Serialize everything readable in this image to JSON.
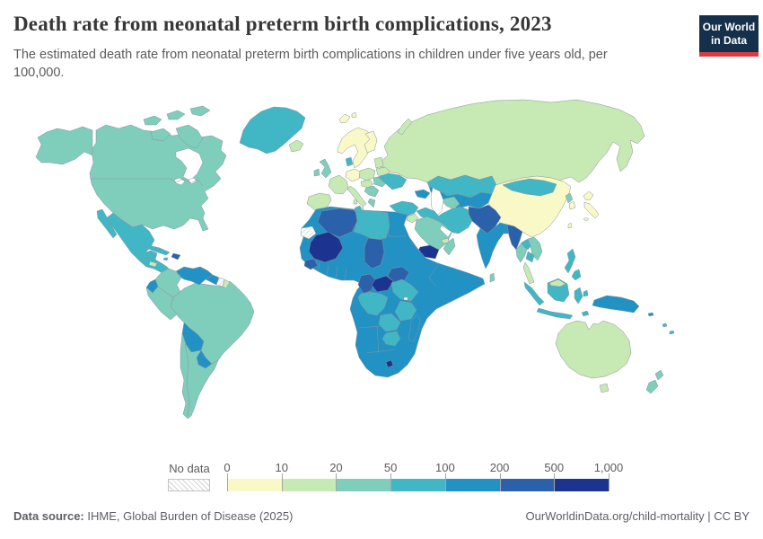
{
  "header": {
    "title": "Death rate from neonatal preterm birth complications, 2023",
    "subtitle": "The estimated death rate from neonatal preterm birth complications in children under five years old, per 100,000.",
    "logo": {
      "line1": "Our World",
      "line2": "in Data",
      "bg_color": "#15304a",
      "accent_color": "#d93b3e"
    }
  },
  "legend": {
    "no_data_label": "No data",
    "tick_labels": [
      "0",
      "10",
      "20",
      "50",
      "100",
      "200",
      "500",
      "1,000"
    ],
    "bin_labels": [
      "0-10",
      "10-20",
      "20-50",
      "50-100",
      "100-200",
      "200-500",
      "500-1000"
    ],
    "bin_colors": [
      "#f8f9c6",
      "#c7e9b4",
      "#7fcdbb",
      "#41b6c4",
      "#2292c4",
      "#2a61aa",
      "#1c348f"
    ]
  },
  "footer": {
    "source_label": "Data source:",
    "source_text": " IHME, Global Burden of Disease (2025)",
    "credit_text": "OurWorldinData.org/child-mortality | CC BY"
  },
  "chart_data": {
    "type": "choropleth",
    "title": "Death rate from neonatal preterm birth complications, 2023",
    "year": 2023,
    "unit": "estimated deaths per 100,000 in children under five",
    "color_scheme": "YlGnBu",
    "bin_edges": [
      0,
      10,
      20,
      50,
      100,
      200,
      500,
      1000
    ],
    "no_data_style": "diagonal-hatch",
    "region_bins": {
      "alaska": "20-50",
      "canada-and-united-states": "20-50",
      "canadian-arctic": "20-50",
      "greenland": "50-100",
      "iceland": "10-20",
      "mexico": "50-100",
      "central-america": "50-100",
      "honduras": "10-20",
      "cuba": "50-100",
      "jamaica": "50-100",
      "hispaniola": "200-500",
      "colombia": "20-50",
      "venezuela": "100-200",
      "guyana": "100-200",
      "suriname": "no-data",
      "french-guiana": "10-20",
      "ecuador": "100-200",
      "peru": "20-50",
      "brazil": "20-50",
      "bolivia": "100-200",
      "paraguay": "100-200",
      "argentina-chile": "20-50",
      "united-kingdom": "20-50",
      "ireland": "20-50",
      "norway-sweden": "0-10",
      "finland": "0-10",
      "svalbard": "0-10",
      "denmark": "50-100",
      "baltics": "10-20",
      "belarus": "10-20",
      "poland": "10-20",
      "germany": "0-10",
      "france": "10-20",
      "iberia": "10-20",
      "italy": "10-20",
      "hungary-austria": "10-20",
      "balkans": "20-50",
      "romania": "20-50",
      "greece": "20-50",
      "ukraine": "50-100",
      "russia": "10-20",
      "novaya-zemlya": "10-20",
      "kazakhstan": "50-100",
      "uzbekistan-region": "100-200",
      "turkmenistan": "20-50",
      "caucasus": "100-200",
      "turkey": "50-100",
      "levant": "10-20",
      "iraq": "50-100",
      "iran": "50-100",
      "saudi-arabia": "20-50",
      "yemen": "500-1000",
      "oman": "20-50",
      "uae": "10-20",
      "afghanistan-pakistan": "200-500",
      "india": "100-200",
      "sri-lanka": "20-50",
      "china": "0-10",
      "mongolia": "50-100",
      "taiwan": "0-10",
      "north-korea": "20-50",
      "south-korea": "0-10",
      "japan": "0-10",
      "myanmar": "200-500",
      "thailand": "20-50",
      "laos": "50-100",
      "vietnam": "20-50",
      "cambodia": "50-100",
      "malay-peninsula": "10-20",
      "sumatra": "50-100",
      "java": "50-100",
      "borneo": "50-100",
      "borneo-malaysia": "10-20",
      "sulawesi": "50-100",
      "philippines": "50-100",
      "timor": "50-100",
      "new-guinea": "100-200",
      "solomon-islands": "100-200",
      "fiji-vanuatu": "50-100",
      "australia": "10-20",
      "tasmania": "10-20",
      "new-zealand": "20-50",
      "africa-interior": "100-200",
      "morocco": "100-200",
      "algeria": "200-500",
      "tunisia": "50-100",
      "libya": "50-100",
      "western-sahara": "no-data",
      "mali": "500-1000",
      "guinea": "200-500",
      "chad": "200-500",
      "cameroon": "200-500",
      "central-african-republic": "500-1000",
      "south-sudan": "200-500",
      "dr-congo": "50-100",
      "kenya-uganda": "50-100",
      "tanzania": "50-100",
      "zambia": "50-100",
      "zimbabwe": "50-100",
      "lesotho": "500-1000",
      "madagascar": "100-200"
    }
  }
}
